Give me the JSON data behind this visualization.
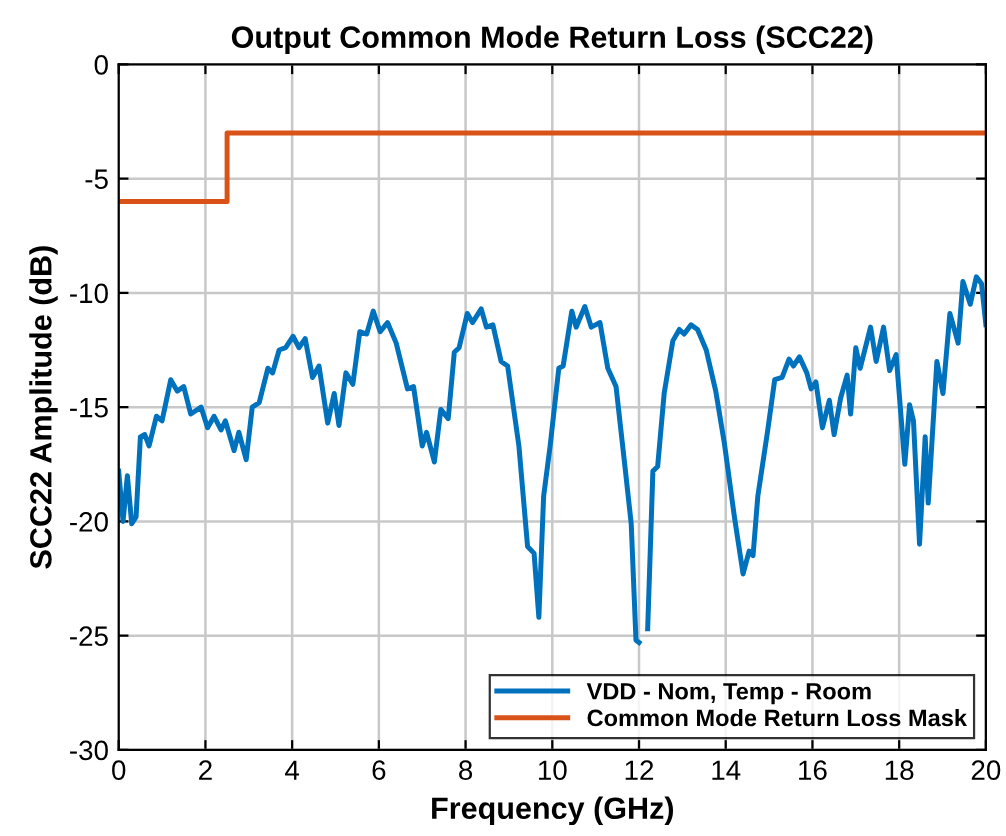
{
  "chart_data": {
    "type": "line",
    "title": "Output Common Mode Return Loss (SCC22)",
    "xlabel": "Frequency (GHz)",
    "ylabel": "SCC22 Amplitude (dB)",
    "xlim": [
      0,
      20
    ],
    "xticks": [
      0,
      2,
      4,
      6,
      8,
      10,
      12,
      14,
      16,
      18,
      20
    ],
    "ylim": [
      -30,
      0
    ],
    "yticks": [
      -30,
      -25,
      -20,
      -15,
      -10,
      -5,
      0
    ],
    "grid": true,
    "legend": "bottom right",
    "line_style": "solid",
    "marker": "none",
    "series": [
      {
        "name": "VDD - Nom, Temp - Room",
        "color": "#0072bd",
        "x": [
          0.0,
          0.1,
          0.2,
          0.3,
          0.4,
          0.5,
          0.6,
          0.7,
          0.87,
          1.0,
          1.2,
          1.35,
          1.5,
          1.66,
          1.9,
          2.05,
          2.2,
          2.36,
          2.46,
          2.66,
          2.77,
          2.94,
          3.08,
          3.24,
          3.44,
          3.55,
          3.7,
          3.85,
          4.02,
          4.16,
          4.3,
          4.47,
          4.62,
          4.82,
          4.97,
          5.08,
          5.24,
          5.4,
          5.56,
          5.72,
          5.87,
          6.03,
          6.2,
          6.4,
          6.66,
          6.8,
          7.0,
          7.1,
          7.28,
          7.43,
          7.6,
          7.74,
          7.85,
          8.04,
          8.16,
          8.36,
          8.48,
          8.63,
          8.82,
          8.97,
          9.23,
          9.43,
          9.58,
          9.69,
          9.8,
          9.95,
          10.15,
          10.25,
          10.45,
          10.55,
          10.75,
          10.9,
          11.1,
          11.28,
          11.47,
          11.67,
          11.82,
          11.93,
          12.0,
          12.05,
          12.2,
          12.32,
          12.43,
          12.58,
          12.78,
          12.93,
          13.04,
          13.2,
          13.35,
          13.55,
          13.77,
          13.97,
          14.2,
          14.4,
          14.54,
          14.63,
          14.74,
          14.97,
          15.13,
          15.3,
          15.46,
          15.56,
          15.7,
          15.87,
          15.97,
          16.08,
          16.23,
          16.39,
          16.5,
          16.65,
          16.8,
          16.88,
          17.0,
          17.1,
          17.34,
          17.47,
          17.64,
          17.78,
          17.93,
          18.13,
          18.24,
          18.33,
          18.47,
          18.6,
          18.67,
          18.87,
          19.01,
          19.17,
          19.36,
          19.47,
          19.64,
          19.78,
          19.9,
          20.0
        ],
        "values": [
          -17.8,
          -20,
          -18,
          -20.1,
          -19.8,
          -16.3,
          -16.2,
          -16.7,
          -15.4,
          -15.6,
          -13.8,
          -14.3,
          -14.1,
          -15.3,
          -15,
          -15.9,
          -15.4,
          -16,
          -15.6,
          -16.9,
          -16.1,
          -17.3,
          -15,
          -14.8,
          -13.3,
          -13.5,
          -12.5,
          -12.4,
          -11.9,
          -12.4,
          -12,
          -13.7,
          -13.2,
          -15.7,
          -14.4,
          -15.8,
          -13.5,
          -14,
          -11.7,
          -11.8,
          -10.8,
          -11.7,
          -11.3,
          -12.2,
          -14.2,
          -14.1,
          -16.7,
          -16.1,
          -17.4,
          -15.1,
          -15.5,
          -12.6,
          -12.4,
          -10.9,
          -11.3,
          -10.7,
          -11.5,
          -11.4,
          -13,
          -13.2,
          -16.7,
          -21.1,
          -21.4,
          -24.2,
          -18.9,
          -16.7,
          -13.3,
          -13.2,
          -10.8,
          -11.5,
          -10.6,
          -11.5,
          -11.3,
          -13.3,
          -14.1,
          -17.5,
          -20.1,
          -25.2,
          -25.3,
          null,
          -24.7,
          -17.8,
          -17.6,
          -14.4,
          -12.1,
          -11.6,
          -11.8,
          -11.4,
          -11.6,
          -12.5,
          -14.3,
          -16.6,
          -19.8,
          -22.3,
          -21.3,
          -21.5,
          -18.9,
          -16,
          -13.8,
          -13.7,
          -12.9,
          -13.2,
          -12.8,
          -13.5,
          -14.2,
          -13.9,
          -15.9,
          -14.7,
          -16.2,
          -14.6,
          -13.6,
          -15.3,
          -12.4,
          -13.3,
          -11.5,
          -13,
          -11.5,
          -13.4,
          -12.7,
          -17.5,
          -14.9,
          -15.6,
          -21,
          -16.3,
          -19.2,
          -13,
          -14.4,
          -10.9,
          -12.2,
          -9.5,
          -10.5,
          -9.3,
          -9.6,
          -11.4
        ]
      },
      {
        "name": "Common Mode Return Loss Mask",
        "color": "#d95319",
        "x": [
          0,
          2.5,
          2.5,
          20
        ],
        "values": [
          -6,
          -6,
          -3,
          -3
        ]
      }
    ]
  }
}
